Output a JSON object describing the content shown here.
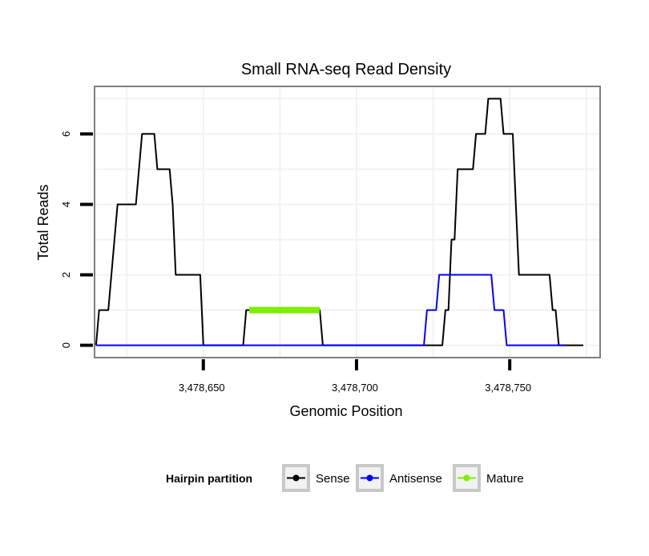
{
  "chart_data": {
    "type": "line",
    "title": "Small RNA-seq Read Density",
    "xlabel": "Genomic Position",
    "ylabel": "Total Reads",
    "xlim": [
      3478614.5,
      3478779.5
    ],
    "ylim": [
      -0.35,
      7.35
    ],
    "x_ticks": [
      3478650,
      3478700,
      3478750
    ],
    "x_tick_labels": [
      "3,478,650",
      "3,478,700",
      "3,478,750"
    ],
    "y_ticks": [
      0,
      2,
      4,
      6
    ],
    "y_tick_labels": [
      "0",
      "2",
      "4",
      "6"
    ],
    "grid": true,
    "legend": {
      "title": "Hairpin partition",
      "position": "bottom",
      "entries": [
        "Sense",
        "Antisense",
        "Mature"
      ]
    },
    "series": [
      {
        "name": "Sense",
        "color": "#000000",
        "stroke": 2,
        "points": [
          [
            3478615,
            0
          ],
          [
            3478616,
            1
          ],
          [
            3478619,
            1
          ],
          [
            3478622,
            4
          ],
          [
            3478628,
            4
          ],
          [
            3478630,
            6
          ],
          [
            3478634,
            6
          ],
          [
            3478635,
            5
          ],
          [
            3478639,
            5
          ],
          [
            3478640,
            4
          ],
          [
            3478641,
            2
          ],
          [
            3478649,
            2
          ],
          [
            3478650,
            0
          ],
          [
            3478663,
            0
          ],
          [
            3478664,
            1
          ],
          [
            3478688,
            1
          ],
          [
            3478689,
            0
          ],
          [
            3478728,
            0
          ],
          [
            3478729,
            1
          ],
          [
            3478730,
            1
          ],
          [
            3478731,
            3
          ],
          [
            3478732,
            3
          ],
          [
            3478733,
            5
          ],
          [
            3478738,
            5
          ],
          [
            3478739,
            6
          ],
          [
            3478742,
            6
          ],
          [
            3478743,
            7
          ],
          [
            3478747,
            7
          ],
          [
            3478748,
            6
          ],
          [
            3478751,
            6
          ],
          [
            3478752,
            4
          ],
          [
            3478753,
            2
          ],
          [
            3478763,
            2
          ],
          [
            3478764,
            1
          ],
          [
            3478765,
            1
          ],
          [
            3478766,
            0
          ],
          [
            3478774,
            0
          ]
        ]
      },
      {
        "name": "Antisense",
        "color": "#0000ff",
        "stroke": 2,
        "points": [
          [
            3478615,
            0
          ],
          [
            3478722,
            0
          ],
          [
            3478723,
            1
          ],
          [
            3478726,
            1
          ],
          [
            3478727,
            2
          ],
          [
            3478744,
            2
          ],
          [
            3478745,
            1
          ],
          [
            3478748,
            1
          ],
          [
            3478749,
            0
          ],
          [
            3478768,
            0
          ]
        ]
      },
      {
        "name": "Mature",
        "color": "#7fee00",
        "stroke": 8,
        "points": [
          [
            3478665,
            1
          ],
          [
            3478688,
            1
          ]
        ]
      }
    ]
  }
}
